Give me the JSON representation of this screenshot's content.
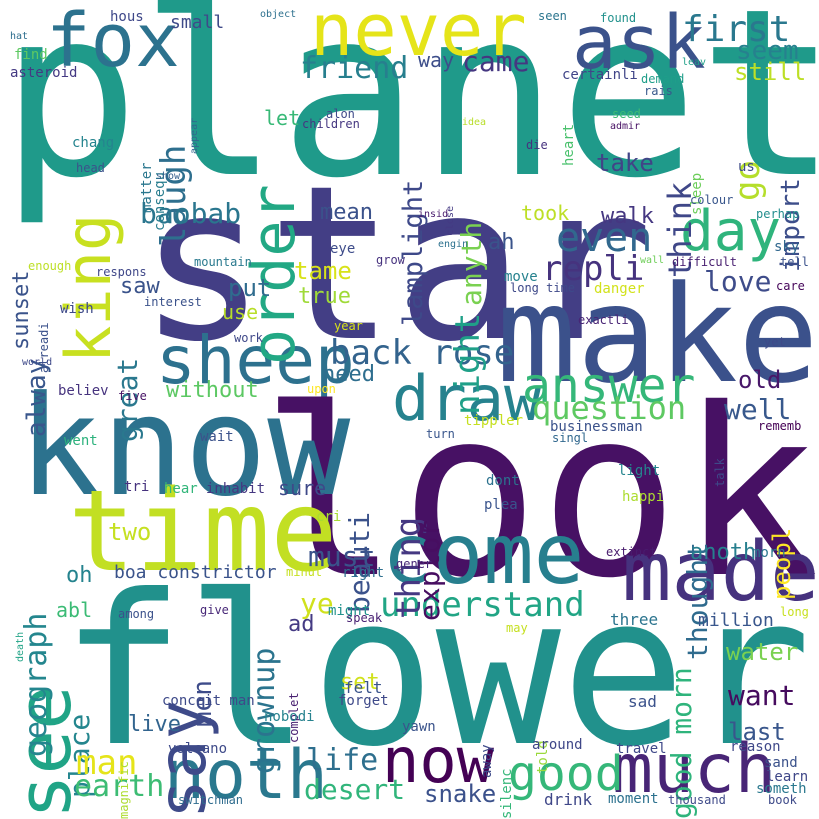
{
  "words": [
    {
      "text": "planet",
      "color": "#1f9a8a"
    },
    {
      "text": "star",
      "color": "#433e85"
    },
    {
      "text": "look",
      "color": "#471164"
    },
    {
      "text": "flower",
      "color": "#21918c"
    },
    {
      "text": "know",
      "color": "#2c728e"
    },
    {
      "text": "make",
      "color": "#3b518b"
    },
    {
      "text": "time",
      "color": "#c2df23"
    },
    {
      "text": "come",
      "color": "#277f8e"
    },
    {
      "text": "made",
      "color": "#46327e"
    },
    {
      "text": "never",
      "color": "#e5e419"
    },
    {
      "text": "fox",
      "color": "#2c728e"
    },
    {
      "text": "ask",
      "color": "#3b528b"
    },
    {
      "text": "king",
      "color": "#c8e020"
    },
    {
      "text": "sheep",
      "color": "#2d718e"
    },
    {
      "text": "draw",
      "color": "#26828e"
    },
    {
      "text": "much",
      "color": "#482576"
    },
    {
      "text": "noth",
      "color": "#2a788e"
    },
    {
      "text": "now",
      "color": "#440154"
    },
    {
      "text": "good",
      "color": "#35b779"
    },
    {
      "text": "day",
      "color": "#2fb47c"
    },
    {
      "text": "see",
      "color": "#20a486"
    },
    {
      "text": "answer",
      "color": "#35b779"
    },
    {
      "text": "say",
      "color": "#3e4a89"
    },
    {
      "text": "even",
      "color": "#31688e"
    },
    {
      "text": "repli",
      "color": "#46337e"
    },
    {
      "text": "understand",
      "color": "#21a585"
    },
    {
      "text": "back rose",
      "color": "#33638d"
    },
    {
      "text": "question",
      "color": "#5ec962"
    },
    {
      "text": "first",
      "color": "#2a788e"
    },
    {
      "text": "order",
      "color": "#22a884"
    },
    {
      "text": "laugh",
      "color": "#2e6f8e"
    },
    {
      "text": "friend",
      "color": "#277f8e"
    },
    {
      "text": "baobab",
      "color": "#2a768e"
    },
    {
      "text": "came",
      "color": "#453781"
    },
    {
      "text": "seem",
      "color": "#26818e"
    },
    {
      "text": "still",
      "color": "#bddf26"
    },
    {
      "text": "go",
      "color": "#b5de2b"
    },
    {
      "text": "think",
      "color": "#3f4788"
    },
    {
      "text": "import",
      "color": "#3d4e8a"
    },
    {
      "text": "lamplight",
      "color": "#3e4989"
    },
    {
      "text": "anyth",
      "color": "#7ad151"
    },
    {
      "text": "take",
      "color": "#414487"
    },
    {
      "text": "took",
      "color": "#bddf26"
    },
    {
      "text": "walk",
      "color": "#453781"
    },
    {
      "text": "ah",
      "color": "#3a538b"
    },
    {
      "text": "mean",
      "color": "#3b528b"
    },
    {
      "text": "tame",
      "color": "#d8e219"
    },
    {
      "text": "true",
      "color": "#a0da39"
    },
    {
      "text": "put",
      "color": "#2f6c8e"
    },
    {
      "text": "saw",
      "color": "#3a538b"
    },
    {
      "text": "love",
      "color": "#3e4c8a"
    },
    {
      "text": "great",
      "color": "#2a788e"
    },
    {
      "text": "alway",
      "color": "#39568c"
    },
    {
      "text": "use",
      "color": "#b8de29"
    },
    {
      "text": "night",
      "color": "#1fa088"
    },
    {
      "text": "sunset",
      "color": "#3a538b"
    },
    {
      "text": "need",
      "color": "#2e6e8e"
    },
    {
      "text": "without",
      "color": "#5cc863"
    },
    {
      "text": "old",
      "color": "#481769"
    },
    {
      "text": "well",
      "color": "#38588c"
    },
    {
      "text": "thing",
      "color": "#453882"
    },
    {
      "text": "beauti",
      "color": "#3b528b"
    },
    {
      "text": "explor",
      "color": "#470e61"
    },
    {
      "text": "thought",
      "color": "#2f6b8e"
    },
    {
      "text": "peopl",
      "color": "#fde725"
    },
    {
      "text": "sure",
      "color": "#3e4989"
    },
    {
      "text": "geograph",
      "color": "#24868e"
    },
    {
      "text": "must",
      "color": "#3a538b"
    },
    {
      "text": "ye",
      "color": "#d0e11c"
    },
    {
      "text": "two",
      "color": "#c5e021"
    },
    {
      "text": "oh",
      "color": "#25838e"
    },
    {
      "text": "grownup",
      "color": "#2b748e"
    },
    {
      "text": "anoth",
      "color": "#277f8e"
    },
    {
      "text": "abl",
      "color": "#3bbb75"
    },
    {
      "text": "ad",
      "color": "#443a83"
    },
    {
      "text": "men",
      "color": "#3e4c8a"
    },
    {
      "text": "good morn",
      "color": "#2fb47c"
    },
    {
      "text": "place",
      "color": "#24868e"
    },
    {
      "text": "live",
      "color": "#32648e"
    },
    {
      "text": "set",
      "color": "#d0e11c"
    },
    {
      "text": "want",
      "color": "#460b5e"
    },
    {
      "text": "water",
      "color": "#7ad151"
    },
    {
      "text": "last",
      "color": "#39568c"
    },
    {
      "text": "man",
      "color": "#e5e419"
    },
    {
      "text": "earth",
      "color": "#3dbc74"
    },
    {
      "text": "life",
      "color": "#2e6f8e"
    },
    {
      "text": "desert",
      "color": "#31b57b"
    },
    {
      "text": "snake",
      "color": "#3b518b"
    },
    {
      "text": "volcano",
      "color": "#3e4a89"
    },
    {
      "text": "hous",
      "color": "#3f4889"
    },
    {
      "text": "object",
      "color": "#2d708e"
    },
    {
      "text": "seen",
      "color": "#2b758e"
    },
    {
      "text": "found",
      "color": "#21918c"
    },
    {
      "text": "hat",
      "color": "#2e6e8e"
    },
    {
      "text": "find",
      "color": "#5ec962"
    },
    {
      "text": "asteroid",
      "color": "#443983"
    },
    {
      "text": "small",
      "color": "#3e4a89"
    },
    {
      "text": "way",
      "color": "#3d4e8a"
    },
    {
      "text": "leav",
      "color": "#1f9f88"
    },
    {
      "text": "certainli",
      "color": "#404588"
    },
    {
      "text": "demand",
      "color": "#1f9e89"
    },
    {
      "text": "rais",
      "color": "#38588c"
    },
    {
      "text": "appear",
      "color": "#31688e"
    },
    {
      "text": "consequ",
      "color": "#287d8e"
    },
    {
      "text": "matter",
      "color": "#2a778e"
    },
    {
      "text": "heart",
      "color": "#4ac16d"
    },
    {
      "text": "seed",
      "color": "#3dbc74"
    },
    {
      "text": "admir",
      "color": "#471063"
    },
    {
      "text": "alon",
      "color": "#3e4989"
    },
    {
      "text": "children",
      "color": "#453781"
    },
    {
      "text": "idea",
      "color": "#b8de29"
    },
    {
      "text": "let",
      "color": "#38b977"
    },
    {
      "text": "chang",
      "color": "#25848e"
    },
    {
      "text": "die",
      "color": "#46327e"
    },
    {
      "text": "head",
      "color": "#3b528b"
    },
    {
      "text": "show",
      "color": "#355f8d"
    },
    {
      "text": "close",
      "color": "#443a83"
    },
    {
      "text": "sleep",
      "color": "#6ccd5a"
    },
    {
      "text": "us",
      "color": "#3e4a89"
    },
    {
      "text": "colour",
      "color": "#39568c"
    },
    {
      "text": "insid",
      "color": "#481a6c"
    },
    {
      "text": "perhap",
      "color": "#228d8d"
    },
    {
      "text": "engin",
      "color": "#2c718e"
    },
    {
      "text": "sky",
      "color": "#31688e"
    },
    {
      "text": "tell",
      "color": "#3b528b"
    },
    {
      "text": "difficult",
      "color": "#481f70"
    },
    {
      "text": "wall",
      "color": "#6ece58"
    },
    {
      "text": "mountain",
      "color": "#29798e"
    },
    {
      "text": "enough",
      "color": "#bddf26"
    },
    {
      "text": "respons",
      "color": "#3f4788"
    },
    {
      "text": "eye",
      "color": "#3e4c8a"
    },
    {
      "text": "grow",
      "color": "#46327e"
    },
    {
      "text": "move",
      "color": "#26828e"
    },
    {
      "text": "long time",
      "color": "#3e4989"
    },
    {
      "text": "danger",
      "color": "#d2e21b"
    },
    {
      "text": "care",
      "color": "#450559"
    },
    {
      "text": "interest",
      "color": "#3b528b"
    },
    {
      "text": "wish",
      "color": "#3e4a89"
    },
    {
      "text": "alreadi",
      "color": "#3b518b"
    },
    {
      "text": "exactli",
      "color": "#482475"
    },
    {
      "text": "year",
      "color": "#d8e219"
    },
    {
      "text": "work",
      "color": "#3f4889"
    },
    {
      "text": "yet",
      "color": "#3e4a89"
    },
    {
      "text": "world",
      "color": "#3e4989"
    },
    {
      "text": "believ",
      "color": "#46337e"
    },
    {
      "text": "five",
      "color": "#471365"
    },
    {
      "text": "upon",
      "color": "#fde725"
    },
    {
      "text": "tippler",
      "color": "#c5e021"
    },
    {
      "text": "businessman",
      "color": "#3b528b"
    },
    {
      "text": "rememb",
      "color": "#440154"
    },
    {
      "text": "went",
      "color": "#2db27d"
    },
    {
      "text": "wait",
      "color": "#3b528b"
    },
    {
      "text": "turn",
      "color": "#39568c"
    },
    {
      "text": "singl",
      "color": "#31688e"
    },
    {
      "text": "talk",
      "color": "#3e4989"
    },
    {
      "text": "tri",
      "color": "#46327e"
    },
    {
      "text": "hear",
      "color": "#32b67a"
    },
    {
      "text": "inhabit",
      "color": "#453781"
    },
    {
      "text": "light",
      "color": "#25858e"
    },
    {
      "text": "dont",
      "color": "#2c728e"
    },
    {
      "text": "happi",
      "color": "#addc30"
    },
    {
      "text": "cri",
      "color": "#a8db34"
    },
    {
      "text": "plea",
      "color": "#3a548c"
    },
    {
      "text": "boa constrictor",
      "color": "#3a538b"
    },
    {
      "text": "minut",
      "color": "#c5e021"
    },
    {
      "text": "right",
      "color": "#2e6f8e"
    },
    {
      "text": "gener",
      "color": "#482878"
    },
    {
      "text": "extinct",
      "color": "#481b6d"
    },
    {
      "text": "morn",
      "color": "#2a778e"
    },
    {
      "text": "might",
      "color": "#20928c"
    },
    {
      "text": "speak",
      "color": "#482173"
    },
    {
      "text": "among",
      "color": "#3b518b"
    },
    {
      "text": "give",
      "color": "#482878"
    },
    {
      "text": "death",
      "color": "#20a386"
    },
    {
      "text": "three",
      "color": "#2b748e"
    },
    {
      "text": "million",
      "color": "#39568c"
    },
    {
      "text": "long",
      "color": "#c8e020"
    },
    {
      "text": "complet",
      "color": "#482071"
    },
    {
      "text": "may",
      "color": "#c5e021"
    },
    {
      "text": "felt",
      "color": "#3a548c"
    },
    {
      "text": "conceit man",
      "color": "#3e4a89"
    },
    {
      "text": "forget",
      "color": "#3e4989"
    },
    {
      "text": "nobodi",
      "color": "#26828e"
    },
    {
      "text": "sad",
      "color": "#3b528b"
    },
    {
      "text": "yawn",
      "color": "#3a538b"
    },
    {
      "text": "told",
      "color": "#9bd93c"
    },
    {
      "text": "away",
      "color": "#3e4a89"
    },
    {
      "text": "around",
      "color": "#3f4788"
    },
    {
      "text": "silenc",
      "color": "#35b779"
    },
    {
      "text": "travel",
      "color": "#3f4889"
    },
    {
      "text": "reason",
      "color": "#3f4889"
    },
    {
      "text": "sand",
      "color": "#3b528b"
    },
    {
      "text": "learn",
      "color": "#3f4788"
    },
    {
      "text": "someth",
      "color": "#2a788e"
    },
    {
      "text": "book",
      "color": "#3e4a89"
    },
    {
      "text": "magnific",
      "color": "#addc30"
    },
    {
      "text": "switchman",
      "color": "#2f6c8e"
    },
    {
      "text": "drink",
      "color": "#3f4788"
    },
    {
      "text": "moment",
      "color": "#2c718e"
    },
    {
      "text": "thousand",
      "color": "#3e4a89"
    }
  ]
}
